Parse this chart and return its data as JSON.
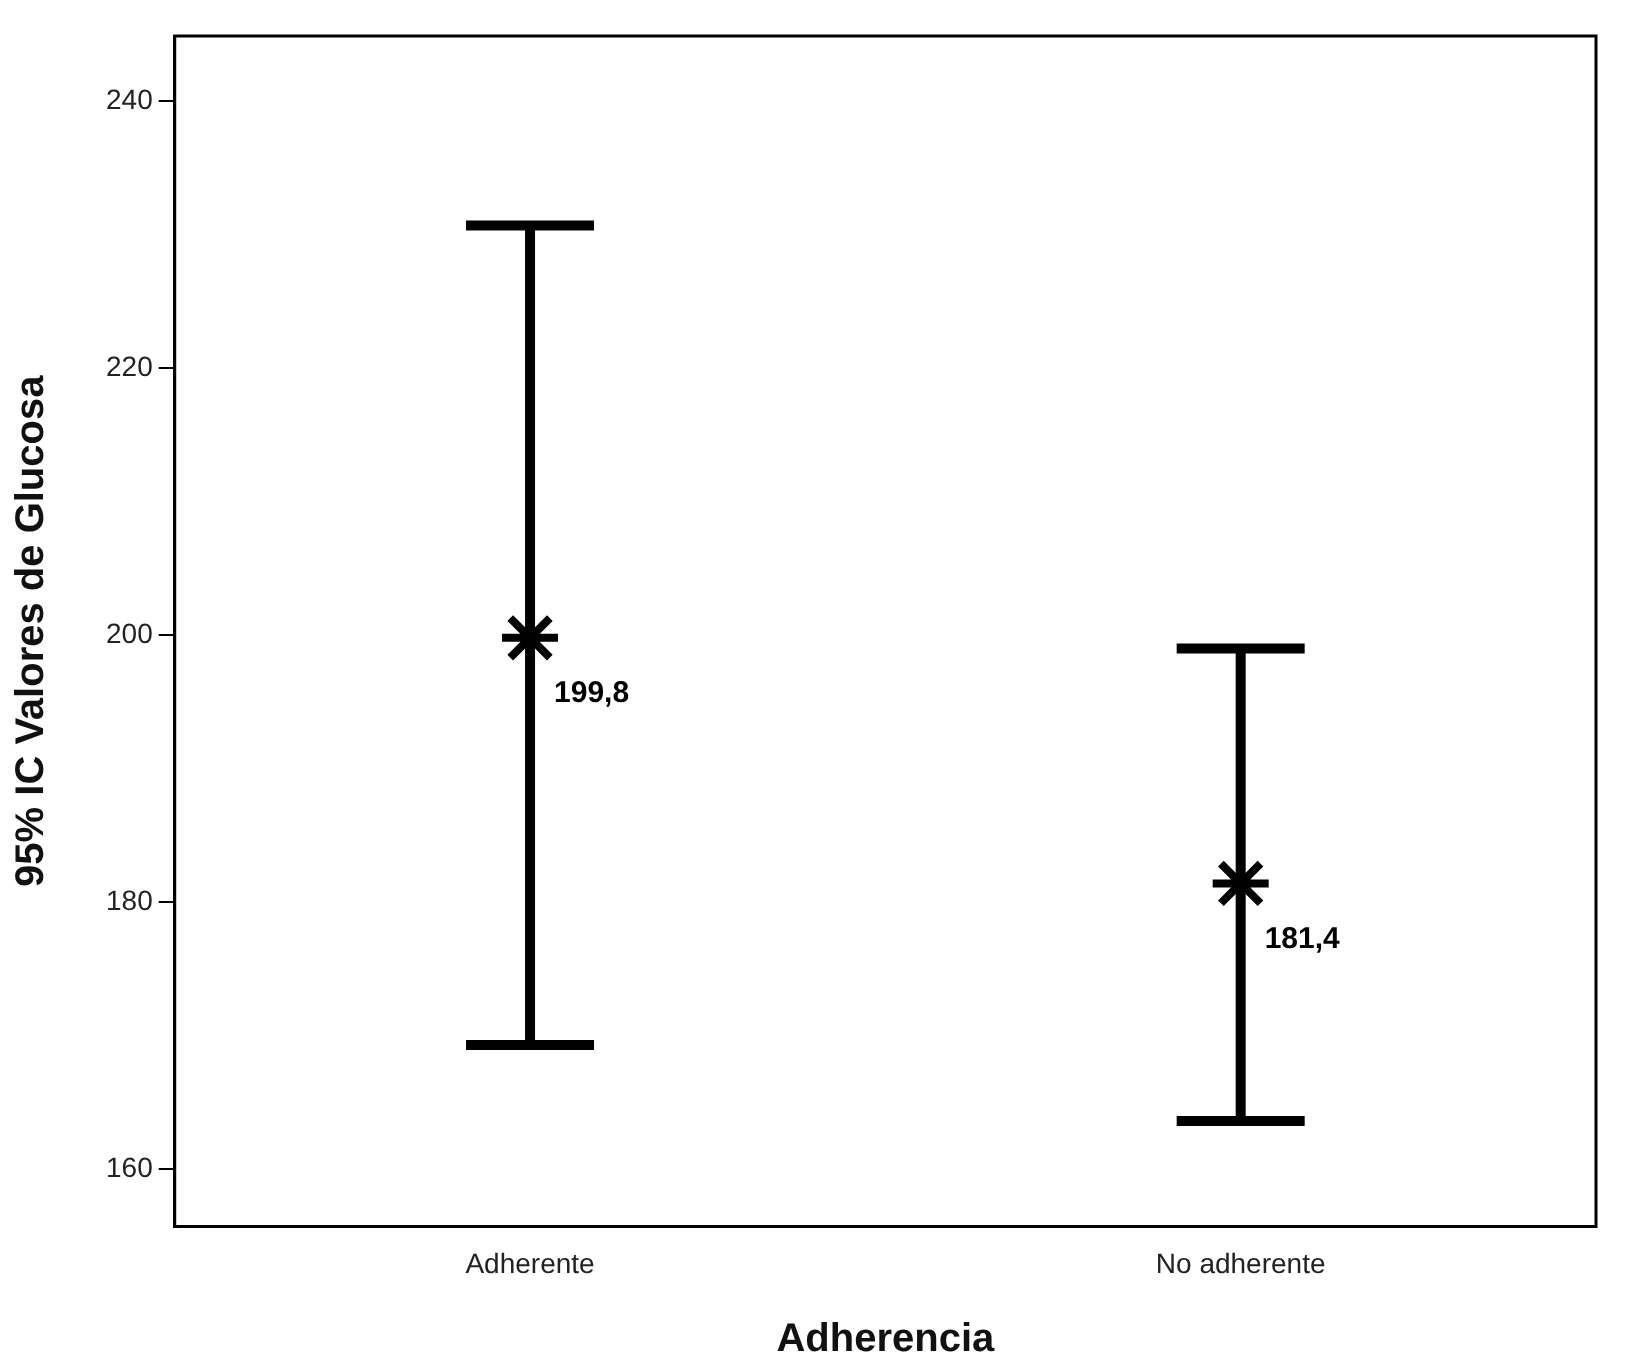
{
  "chart_data": {
    "type": "scatter",
    "xlabel": "Adherencia",
    "ylabel": "95% IC Valores de Glucosa",
    "categories": [
      "Adherente",
      "No adherente"
    ],
    "values": [
      199.8,
      181.4
    ],
    "value_labels": [
      "199,8",
      "181,4"
    ],
    "errors": [
      [
        169.3,
        230.7
      ],
      [
        163.6,
        199.0
      ]
    ],
    "color": "#000000",
    "marker": "cross",
    "ylim": [
      155.7,
      244.9
    ],
    "yticks": [
      160,
      180,
      200,
      220,
      240
    ],
    "grid": false,
    "legend": false
  }
}
